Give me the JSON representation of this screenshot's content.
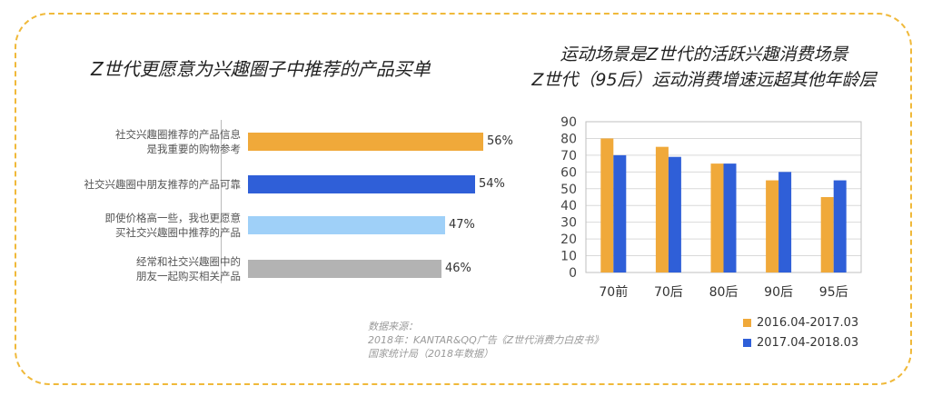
{
  "colors": {
    "border": "#f0b93a",
    "orange": "#f0a93a",
    "blue": "#2f5fd8",
    "light_blue": "#9fd0f8",
    "gray": "#b3b3b3"
  },
  "left_title": "Z世代更愿意为兴趣圈子中推荐的产品买单",
  "right_title_line1": "运动场景是Z世代的活跃兴趣消费场景",
  "right_title_line2": "Z世代（95后）运动消费增速远超其他年龄层",
  "source": {
    "line1": "数据来源：",
    "line2": "2018年：KANTAR&QQ广告《Z世代消费力白皮书》",
    "line3": "国家统计局（2018年数据）"
  },
  "chart_data": [
    {
      "type": "bar",
      "orientation": "horizontal",
      "title": "Z世代更愿意为兴趣圈子中推荐的产品买单",
      "categories": [
        [
          "社交兴趣圈推荐的产品信息",
          "是我重要的购物参考"
        ],
        [
          "社交兴趣圈中朋友推荐的产品可靠"
        ],
        [
          "即使价格高一些，我也更愿意",
          "买社交兴趣圈中推荐的产品"
        ],
        [
          "经常和社交兴趣圈中的",
          "朋友一起购买相关产品"
        ]
      ],
      "values": [
        56,
        54,
        47,
        46
      ],
      "value_labels": [
        "56%",
        "54%",
        "47%",
        "46%"
      ],
      "bar_colors": [
        "#f0a93a",
        "#2f5fd8",
        "#9fd0f8",
        "#b3b3b3"
      ],
      "xlim": [
        0,
        56
      ]
    },
    {
      "type": "bar",
      "title": "运动场景是Z世代的活跃兴趣消费场景 Z世代（95后）运动消费增速远超其他年龄层",
      "categories": [
        "70前",
        "70后",
        "80后",
        "90后",
        "95后"
      ],
      "series": [
        {
          "name": "2016.04-2017.03",
          "values": [
            80,
            75,
            65,
            55,
            45
          ],
          "color": "#f0a93a"
        },
        {
          "name": "2017.04-2018.03",
          "values": [
            70,
            69,
            65,
            60,
            55
          ],
          "color": "#2f5fd8"
        }
      ],
      "ylim": [
        0,
        90
      ],
      "yticks": [
        "0",
        "10",
        "20",
        "30",
        "40",
        "50",
        "60",
        "70",
        "80",
        "90"
      ],
      "grid": true,
      "legend": "bottom-right"
    }
  ]
}
